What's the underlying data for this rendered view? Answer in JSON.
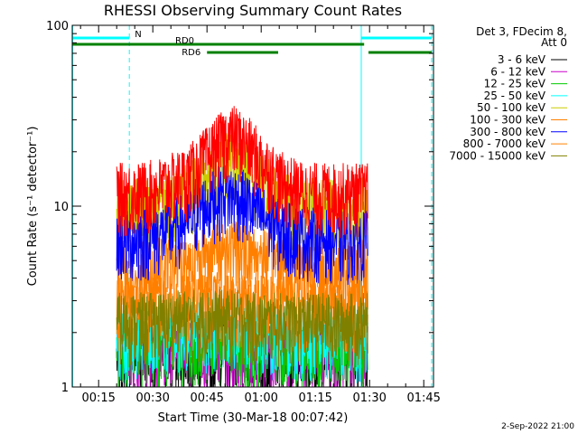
{
  "chart_data": {
    "type": "line",
    "title": "RHESSI Observing Summary Count Rates",
    "xlabel": "Start Time (30-Mar-18 00:07:42)",
    "ylabel": "Count Rate (s⁻¹ detector⁻¹)",
    "y_scale": "log",
    "ylim": [
      1,
      100
    ],
    "xlim_minutes": [
      7.7,
      107.7
    ],
    "x_ticks": [
      {
        "label": "00:15",
        "minutes": 15
      },
      {
        "label": "00:30",
        "minutes": 30
      },
      {
        "label": "00:45",
        "minutes": 45
      },
      {
        "label": "01:00",
        "minutes": 60
      },
      {
        "label": "01:15",
        "minutes": 75
      },
      {
        "label": "01:30",
        "minutes": 90
      },
      {
        "label": "01:45",
        "minutes": 105
      }
    ],
    "y_ticks": [
      {
        "label": "1",
        "value": 1
      },
      {
        "label": "10",
        "value": 10
      },
      {
        "label": "100",
        "value": 100
      }
    ],
    "legend_position": "right",
    "legend_header": [
      "Det 3, FDecim 8,",
      "Att 0"
    ],
    "series": [
      {
        "name": "3 - 6 keV",
        "color": "#000000",
        "x": [
          20,
          30,
          40,
          50,
          60,
          70,
          80,
          89.5
        ],
        "y": [
          1.5,
          1.5,
          1.6,
          1.6,
          1.5,
          1.5,
          1.5,
          1.5
        ]
      },
      {
        "name": "6 - 12 keV",
        "color": "#cc00cc",
        "x": [
          20,
          30,
          40,
          50,
          60,
          70,
          80,
          89.5
        ],
        "y": [
          1.6,
          1.6,
          1.7,
          1.7,
          1.6,
          1.6,
          1.6,
          1.6
        ]
      },
      {
        "name": "12 - 25 keV",
        "color": "#00cc00",
        "x": [
          20,
          30,
          40,
          50,
          60,
          70,
          80,
          89.5
        ],
        "y": [
          1.7,
          1.7,
          1.8,
          1.8,
          1.7,
          1.7,
          1.7,
          1.7
        ]
      },
      {
        "name": "25 - 50 keV",
        "color": "#00ffff",
        "x": [
          20,
          30,
          40,
          50,
          60,
          70,
          80,
          89.5
        ],
        "y": [
          1.9,
          1.9,
          2.1,
          2.2,
          2.0,
          1.9,
          1.9,
          1.9
        ]
      },
      {
        "name": "50 - 100 keV",
        "color": "#cccc00",
        "x": [
          20,
          25,
          30,
          35,
          40,
          45,
          50,
          55,
          60,
          65,
          70,
          75,
          80,
          85,
          89.5
        ],
        "y": [
          10,
          10,
          10.5,
          11,
          12,
          15,
          18,
          17,
          14,
          11,
          10,
          10,
          10,
          10,
          10
        ]
      },
      {
        "name": "100 - 300 keV",
        "color": "#ff8000",
        "x": [
          20,
          30,
          40,
          50,
          60,
          70,
          80,
          89.5
        ],
        "y": [
          4.5,
          4.6,
          5,
          6,
          5.5,
          4.6,
          4.5,
          4.5
        ]
      },
      {
        "name": "300 - 800 keV",
        "color": "#0000ff",
        "x": [
          20,
          25,
          30,
          35,
          40,
          45,
          50,
          55,
          60,
          65,
          70,
          75,
          80,
          85,
          89.5
        ],
        "y": [
          6.5,
          6.6,
          7,
          7.5,
          8.5,
          10.5,
          12,
          11,
          9,
          7.5,
          7,
          6.8,
          6.6,
          6.5,
          6.5
        ]
      },
      {
        "name": "800 - 7000 keV",
        "color": "#ff8000",
        "x": [
          20,
          30,
          40,
          50,
          60,
          70,
          80,
          89.5
        ],
        "y": [
          2.8,
          2.8,
          2.9,
          3,
          2.9,
          2.8,
          2.8,
          2.8
        ]
      },
      {
        "name": "7000 - 15000 keV",
        "color": "#808000",
        "x": [
          20,
          30,
          40,
          50,
          60,
          70,
          80,
          89.5
        ],
        "y": [
          2.3,
          2.3,
          2.4,
          2.4,
          2.3,
          2.3,
          2.3,
          2.3
        ]
      },
      {
        "color": "#ff0000",
        "x": [
          20,
          25,
          30,
          35,
          40,
          45,
          50,
          52.5,
          55,
          60,
          65,
          70,
          75,
          80,
          85,
          89.5
        ],
        "y": [
          12,
          12,
          12.5,
          13.5,
          15,
          19,
          24,
          25,
          23,
          18,
          14,
          12.5,
          12,
          12,
          12,
          12
        ]
      }
    ],
    "annotations": [
      {
        "label": "N",
        "color": "#00ffff",
        "x_start": 7.7,
        "x_end": 23.5,
        "level": "top"
      },
      {
        "label": "",
        "color": "#00ffff",
        "x_start": 87.7,
        "x_end": 107.2,
        "level": "top"
      },
      {
        "label": "RD0",
        "color": "#008000",
        "x_start": 7.7,
        "x_end": 64.7,
        "level": "second"
      },
      {
        "label": "",
        "color": "#008000",
        "x_start": 64.7,
        "x_end": 88.5,
        "level": "second"
      },
      {
        "label": "RD6",
        "color": "#008000",
        "x_start": 45,
        "x_end": 64.7,
        "level": "third"
      },
      {
        "label": "",
        "color": "#008000",
        "x_start": 89.7,
        "x_end": 107.2,
        "level": "third"
      }
    ],
    "vertical_markers": [
      {
        "minutes": 7.8,
        "color": "#00ffff",
        "style": "solid"
      },
      {
        "minutes": 23.5,
        "color": "#00ffff",
        "style": "dashed"
      },
      {
        "minutes": 87.7,
        "color": "#00ffff",
        "style": "solid"
      },
      {
        "minutes": 107.2,
        "color": "#00ffff",
        "style": "dashed"
      }
    ],
    "data_window_minutes": [
      20,
      89.5
    ]
  },
  "footer": {
    "date": "2-Sep-2022 21:00"
  }
}
